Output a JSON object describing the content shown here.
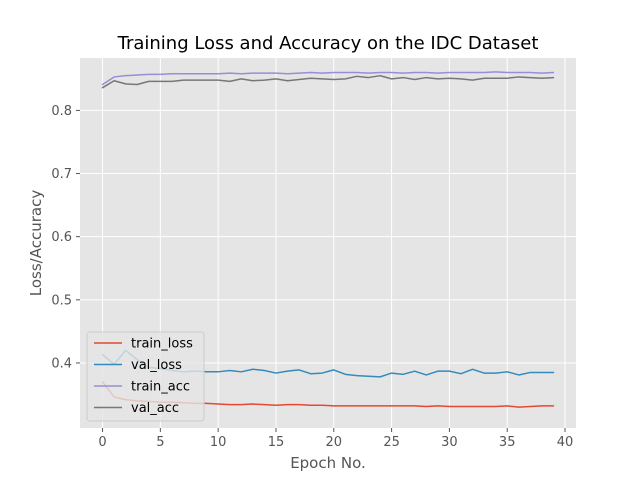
{
  "chart_data": {
    "type": "line",
    "title": "Training Loss and Accuracy on the IDC Dataset",
    "xlabel": "Epoch No.",
    "ylabel": "Loss/Accuracy",
    "xlim": [
      -1.95,
      40.95
    ],
    "ylim": [
      0.297,
      0.883
    ],
    "xticks": [
      0,
      5,
      10,
      15,
      20,
      25,
      30,
      35,
      40
    ],
    "yticks": [
      0.4,
      0.5,
      0.6,
      0.7,
      0.8
    ],
    "grid": true,
    "legend_position": "lower-left",
    "x": [
      0,
      1,
      2,
      3,
      4,
      5,
      6,
      7,
      8,
      9,
      10,
      11,
      12,
      13,
      14,
      15,
      16,
      17,
      18,
      19,
      20,
      21,
      22,
      23,
      24,
      25,
      26,
      27,
      28,
      29,
      30,
      31,
      32,
      33,
      34,
      35,
      36,
      37,
      38,
      39
    ],
    "series": [
      {
        "name": "train_loss",
        "color": "#e24a33",
        "values": [
          0.37,
          0.346,
          0.342,
          0.34,
          0.339,
          0.338,
          0.338,
          0.337,
          0.336,
          0.336,
          0.335,
          0.334,
          0.334,
          0.335,
          0.334,
          0.333,
          0.334,
          0.334,
          0.333,
          0.333,
          0.332,
          0.332,
          0.332,
          0.332,
          0.332,
          0.332,
          0.332,
          0.332,
          0.331,
          0.332,
          0.331,
          0.331,
          0.331,
          0.331,
          0.331,
          0.332,
          0.33,
          0.331,
          0.332,
          0.332
        ]
      },
      {
        "name": "val_loss",
        "color": "#348abd",
        "values": [
          0.413,
          0.398,
          0.42,
          0.405,
          0.393,
          0.391,
          0.388,
          0.386,
          0.387,
          0.386,
          0.386,
          0.388,
          0.386,
          0.39,
          0.388,
          0.384,
          0.387,
          0.389,
          0.383,
          0.384,
          0.389,
          0.382,
          0.38,
          0.379,
          0.378,
          0.384,
          0.382,
          0.387,
          0.381,
          0.387,
          0.387,
          0.383,
          0.39,
          0.384,
          0.384,
          0.386,
          0.381,
          0.385,
          0.385,
          0.385
        ]
      },
      {
        "name": "train_acc",
        "color": "#988ed5",
        "values": [
          0.841,
          0.853,
          0.855,
          0.856,
          0.857,
          0.857,
          0.858,
          0.858,
          0.858,
          0.858,
          0.858,
          0.859,
          0.858,
          0.859,
          0.859,
          0.859,
          0.858,
          0.859,
          0.86,
          0.859,
          0.86,
          0.86,
          0.86,
          0.859,
          0.86,
          0.86,
          0.859,
          0.86,
          0.86,
          0.859,
          0.86,
          0.86,
          0.86,
          0.86,
          0.861,
          0.86,
          0.86,
          0.86,
          0.859,
          0.86
        ]
      },
      {
        "name": "val_acc",
        "color": "#777777",
        "values": [
          0.836,
          0.847,
          0.842,
          0.841,
          0.846,
          0.846,
          0.846,
          0.848,
          0.848,
          0.848,
          0.848,
          0.846,
          0.85,
          0.847,
          0.848,
          0.85,
          0.847,
          0.849,
          0.851,
          0.85,
          0.849,
          0.85,
          0.854,
          0.852,
          0.855,
          0.85,
          0.852,
          0.849,
          0.852,
          0.85,
          0.851,
          0.85,
          0.848,
          0.851,
          0.851,
          0.851,
          0.853,
          0.852,
          0.851,
          0.852
        ]
      }
    ]
  }
}
